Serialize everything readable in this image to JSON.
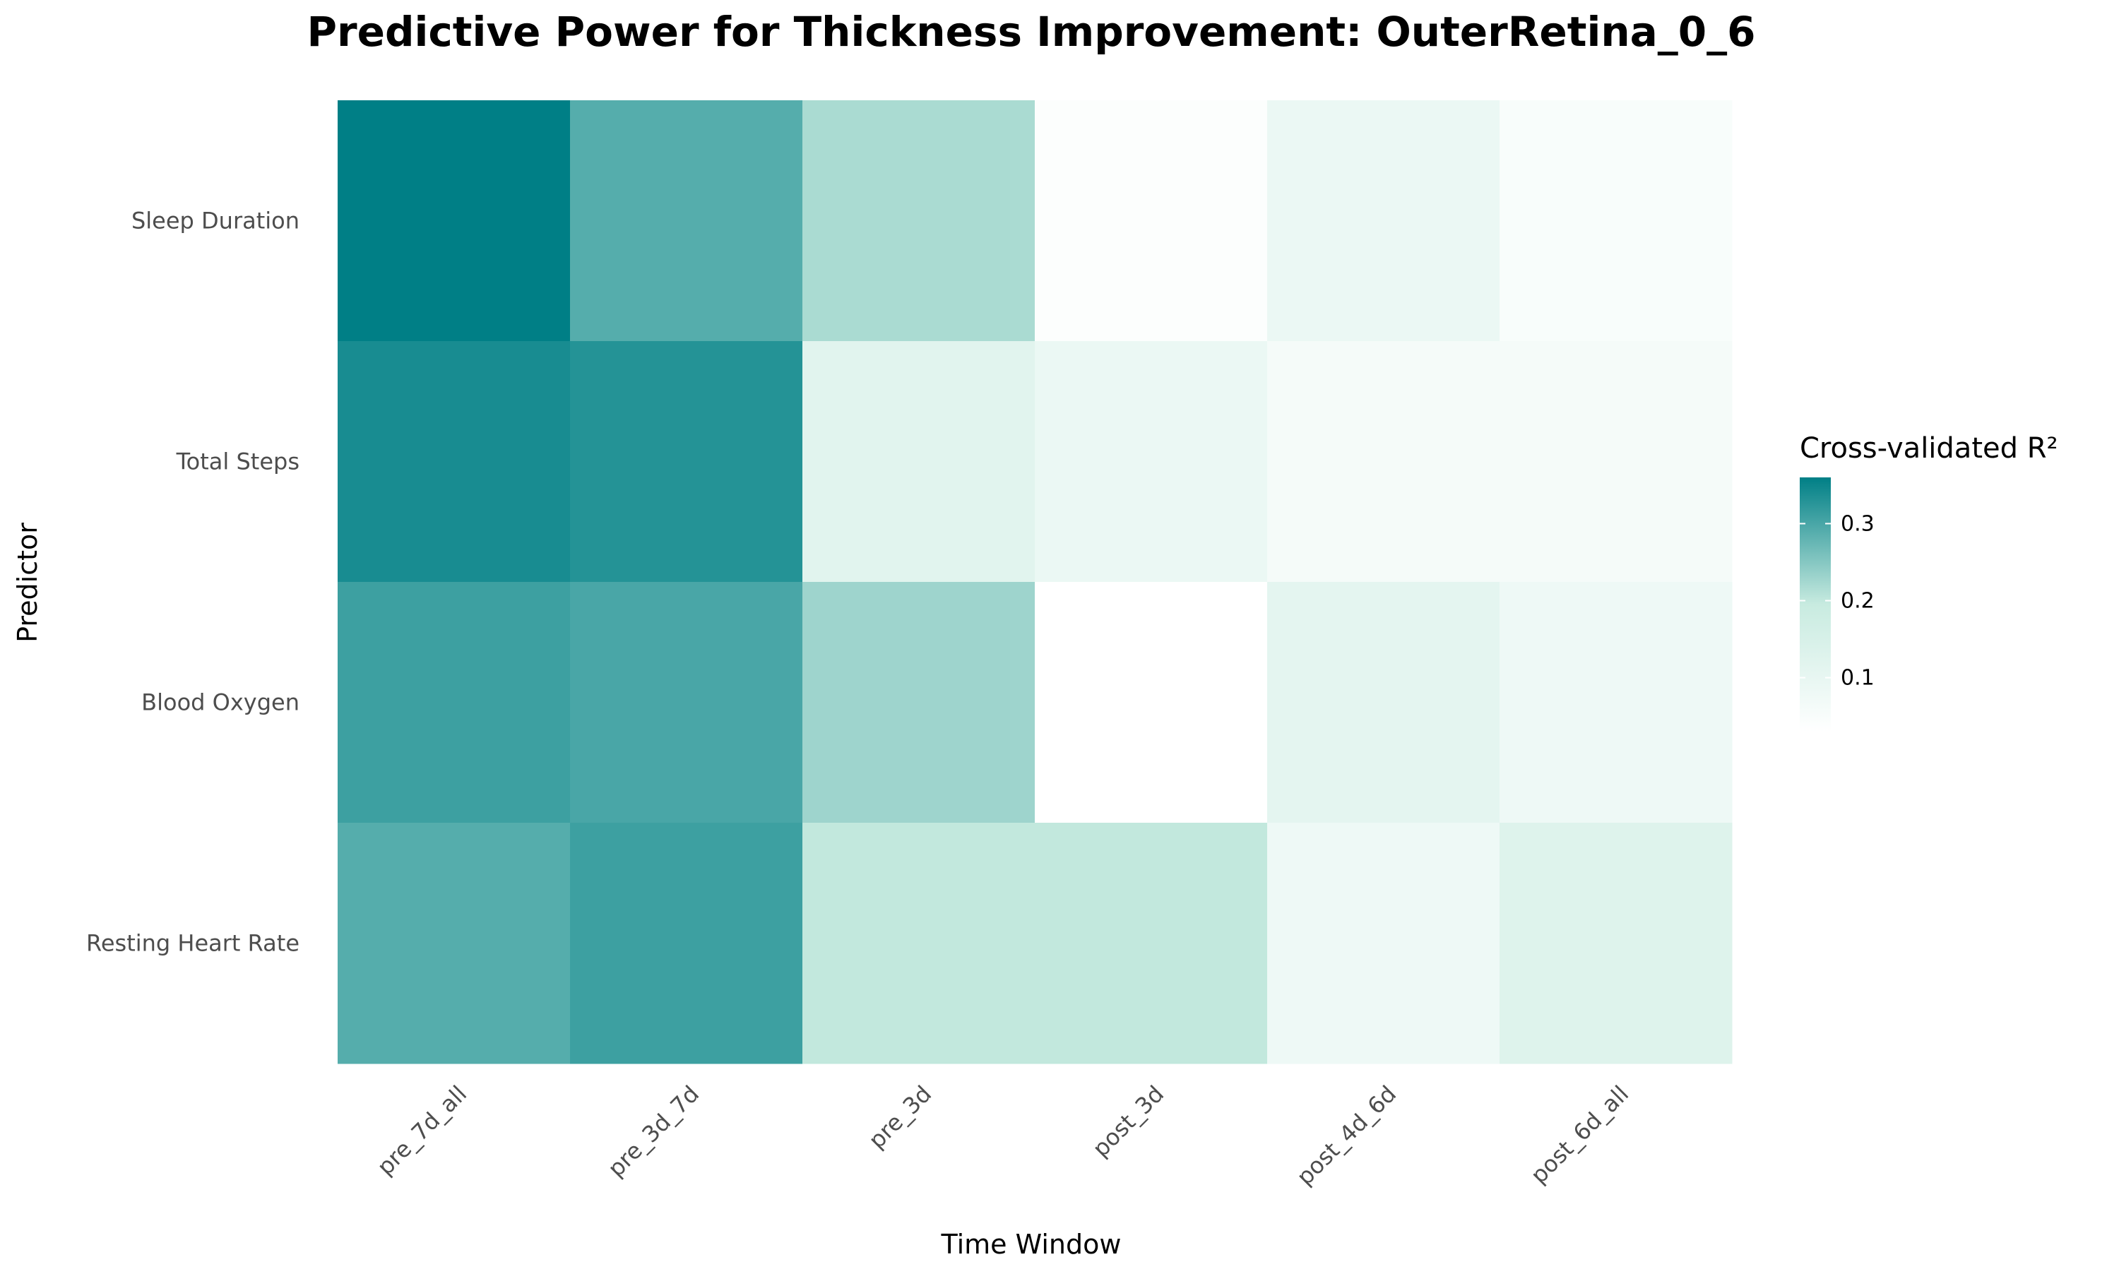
{
  "chart_data": {
    "type": "heatmap",
    "title": "Predictive Power for Thickness Improvement: OuterRetina_0_6",
    "xlabel": "Time Window",
    "ylabel": "Predictor",
    "x_categories": [
      "pre_7d_all",
      "pre_3d_7d",
      "pre_3d",
      "post_3d",
      "post_4d_6d",
      "post_6d_all"
    ],
    "y_categories": [
      "Sleep Duration",
      "Total Steps",
      "Blood Oxygen",
      "Resting Heart Rate"
    ],
    "values": [
      [
        0.36,
        0.29,
        0.22,
        0.04,
        0.09,
        0.05
      ],
      [
        0.34,
        0.33,
        0.12,
        0.09,
        0.06,
        0.06
      ],
      [
        0.31,
        0.3,
        0.23,
        0.03,
        0.11,
        0.08
      ],
      [
        0.29,
        0.31,
        0.2,
        0.2,
        0.08,
        0.13
      ]
    ],
    "legend": {
      "title": "Cross-validated R²",
      "ticks": [
        0.1,
        0.2,
        0.3
      ],
      "tick_labels": [
        "0.1",
        "0.2",
        "0.3"
      ],
      "min": 0.03,
      "max": 0.36,
      "placement": "right"
    },
    "colors": {
      "low": "#ffffff",
      "mid": "#c8ebe0",
      "high": "#007f86",
      "title": "#000000",
      "axis_text": "#4d4d4d"
    }
  }
}
